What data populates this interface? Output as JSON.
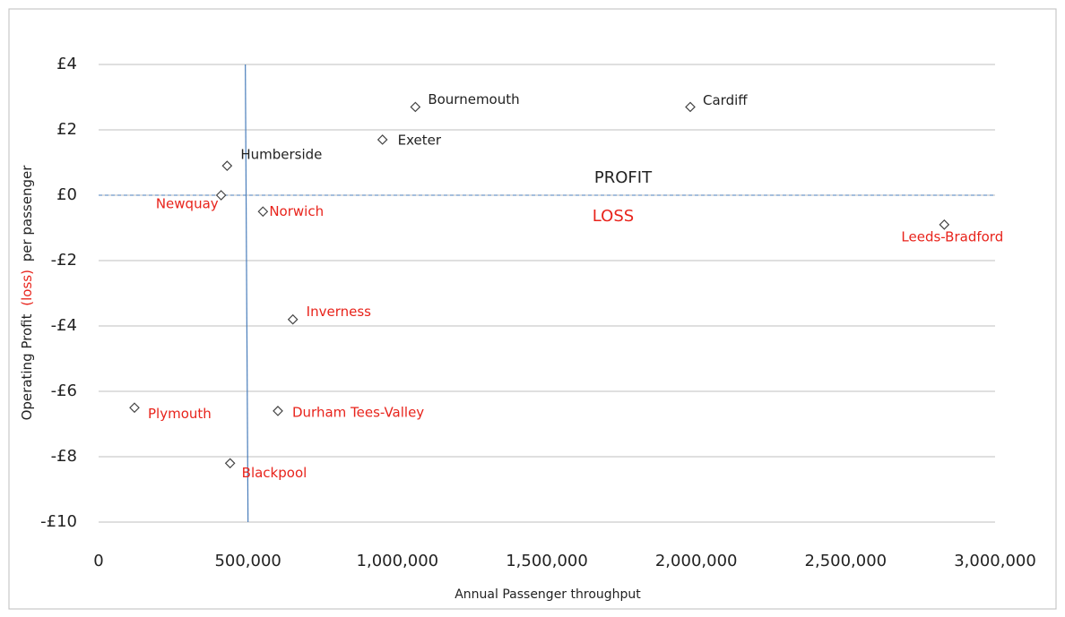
{
  "chart_data": {
    "type": "scatter",
    "x_label": "Annual Passenger throughput",
    "y_label_parts": [
      "Operating Profit",
      "(loss)",
      "per passenger"
    ],
    "y_label_colors": [
      "#222222",
      "#e8231b",
      "#222222"
    ],
    "labels": [
      "Bournemouth",
      "Cardiff",
      "Exeter",
      "Humberside",
      "Newquay",
      "Norwich",
      "Leeds-Bradford",
      "Inverness",
      "Plymouth",
      "Durham Tees-Valley",
      "Blackpool"
    ],
    "x": [
      1060000,
      1980000,
      950000,
      430000,
      410000,
      550000,
      2830000,
      650000,
      120000,
      600000,
      440000
    ],
    "values": [
      2.7,
      2.7,
      1.7,
      0.9,
      0.0,
      -0.5,
      -0.9,
      -3.8,
      -6.5,
      -6.6,
      -8.2
    ],
    "label_colors": [
      "#222222",
      "#222222",
      "#222222",
      "#222222",
      "#e8231b",
      "#e8231b",
      "#e8231b",
      "#e8231b",
      "#e8231b",
      "#e8231b",
      "#e8231b"
    ],
    "marker_color": "#444444",
    "xlim": [
      0,
      3000000
    ],
    "ylim": [
      -10,
      4
    ],
    "xticks": [
      0,
      {
        "value": 500000,
        "label": "500,000"
      },
      {
        "value": 1000000,
        "label": "1,000,000"
      },
      {
        "value": 1500000,
        "label": "1,500,000"
      },
      {
        "value": 2000000,
        "label": "2,000,000"
      },
      {
        "value": 2500000,
        "label": "2,500,000"
      },
      {
        "value": 3000000,
        "label": "3,000,000"
      }
    ],
    "yticks": [
      {
        "value": 4,
        "label": "£4"
      },
      {
        "value": 2,
        "label": "£2"
      },
      {
        "value": 0,
        "label": "£0"
      },
      {
        "value": -2,
        "label": "-£2"
      },
      {
        "value": -4,
        "label": "-£4"
      },
      {
        "value": -6,
        "label": "-£6"
      },
      {
        "value": -8,
        "label": "-£8"
      },
      {
        "value": -10,
        "label": "-£10"
      }
    ],
    "grid": true,
    "vline": 500000,
    "vline_color": "#4a7ebb",
    "hline": 0,
    "hline_color": "#4a7ebb",
    "annotations": [
      {
        "text": "PROFIT",
        "color": "#222222"
      },
      {
        "text": "LOSS",
        "color": "#e8231b"
      }
    ]
  }
}
